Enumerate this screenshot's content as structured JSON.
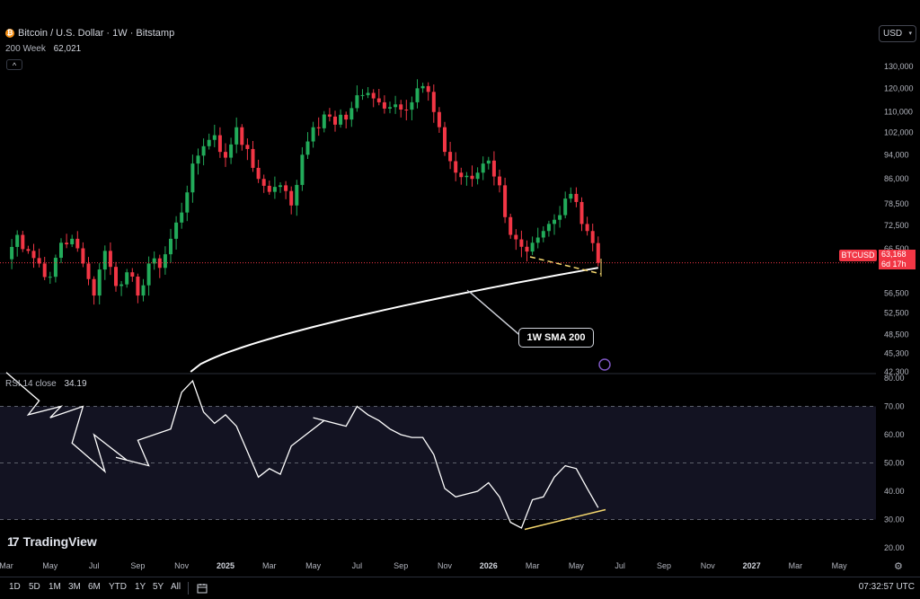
{
  "header": {
    "title": "Bitcoin / U.S. Dollar · 1W · Bitstamp",
    "logo_letter": "₿",
    "sma_label": "200 Week",
    "sma_value": "62,021",
    "collapse_glyph": "^"
  },
  "currency_button": {
    "label": "USD",
    "caret": "▾"
  },
  "price_axis": {
    "labels": [
      "130,000",
      "120,000",
      "110,000",
      "102,000",
      "94,000",
      "86,000",
      "78,500",
      "72,500",
      "66,500",
      "56,500",
      "52,500",
      "48,500",
      "45,300",
      "42,300"
    ]
  },
  "price_marker": {
    "symbol": "BTCUSD",
    "price": "63,168",
    "countdown": "6d 17h"
  },
  "rsi": {
    "label": "RSI 14 close",
    "value": "34.19",
    "axis_labels": [
      "80.00",
      "70.00",
      "60.00",
      "50.00",
      "40.00",
      "30.00",
      "20.00"
    ]
  },
  "annotation": {
    "label": "1W SMA 200"
  },
  "brand": {
    "name": "TradingView",
    "mark": "17"
  },
  "time_axis": [
    {
      "label": "Mar",
      "bold": false
    },
    {
      "label": "May",
      "bold": false
    },
    {
      "label": "Jul",
      "bold": false
    },
    {
      "label": "Sep",
      "bold": false
    },
    {
      "label": "Nov",
      "bold": false
    },
    {
      "label": "2025",
      "bold": true
    },
    {
      "label": "Mar",
      "bold": false
    },
    {
      "label": "May",
      "bold": false
    },
    {
      "label": "Jul",
      "bold": false
    },
    {
      "label": "Sep",
      "bold": false
    },
    {
      "label": "Nov",
      "bold": false
    },
    {
      "label": "2026",
      "bold": true
    },
    {
      "label": "Mar",
      "bold": false
    },
    {
      "label": "May",
      "bold": false
    },
    {
      "label": "Jul",
      "bold": false
    },
    {
      "label": "Sep",
      "bold": false
    },
    {
      "label": "Nov",
      "bold": false
    },
    {
      "label": "2027",
      "bold": true
    },
    {
      "label": "Mar",
      "bold": false
    },
    {
      "label": "May",
      "bold": false
    }
  ],
  "toolbar": {
    "ranges": [
      "1D",
      "5D",
      "1M",
      "3M",
      "6M",
      "YTD",
      "1Y",
      "5Y",
      "All"
    ],
    "time": "07:32:57 UTC",
    "calendar_icon": "calendar-icon",
    "gear_icon": "gear-icon"
  },
  "colors": {
    "up": "#26a69a",
    "up_bright": "#22ab5a",
    "down": "#f23645",
    "sma": "#ffffff",
    "rsi_line": "#ffffff",
    "trendline": "#f5d76e",
    "rsi_band": "#131322",
    "background": "#000000"
  },
  "chart_data": [
    {
      "type": "candlestick",
      "title": "Bitcoin / U.S. Dollar · 1W · Bitstamp",
      "x_start": "2024-03",
      "x_end": "2026-06",
      "ylim": [
        42300,
        134000
      ],
      "log_scale": true,
      "grid": false,
      "price_path": [
        [
          "2024-03",
          64000
        ],
        [
          "2024-03",
          70000
        ],
        [
          "2024-04",
          66000
        ],
        [
          "2024-04",
          63000
        ],
        [
          "2024-05",
          60000
        ],
        [
          "2024-05",
          68000
        ],
        [
          "2024-06",
          69000
        ],
        [
          "2024-06",
          63000
        ],
        [
          "2024-07",
          56000
        ],
        [
          "2024-07",
          66000
        ],
        [
          "2024-08",
          58000
        ],
        [
          "2024-08",
          61000
        ],
        [
          "2024-09",
          56000
        ],
        [
          "2024-09",
          63000
        ],
        [
          "2024-10",
          62000
        ],
        [
          "2024-10",
          69000
        ],
        [
          "2024-11",
          76000
        ],
        [
          "2024-11",
          91000
        ],
        [
          "2024-12",
          97000
        ],
        [
          "2024-12",
          101000
        ],
        [
          "2025-01",
          93000
        ],
        [
          "2025-01",
          104000
        ],
        [
          "2025-02",
          96000
        ],
        [
          "2025-02",
          86000
        ],
        [
          "2025-03",
          82000
        ],
        [
          "2025-03",
          84000
        ],
        [
          "2025-04",
          78000
        ],
        [
          "2025-04",
          94000
        ],
        [
          "2025-05",
          104000
        ],
        [
          "2025-05",
          109000
        ],
        [
          "2025-06",
          105000
        ],
        [
          "2025-06",
          107000
        ],
        [
          "2025-07",
          117000
        ],
        [
          "2025-07",
          118000
        ],
        [
          "2025-08",
          114000
        ],
        [
          "2025-08",
          112000
        ],
        [
          "2025-09",
          111000
        ],
        [
          "2025-09",
          114000
        ],
        [
          "2025-10",
          121000
        ],
        [
          "2025-10",
          110000
        ],
        [
          "2025-11",
          95000
        ],
        [
          "2025-11",
          88000
        ],
        [
          "2025-12",
          87000
        ],
        [
          "2025-12",
          88000
        ],
        [
          "2026-01",
          92000
        ],
        [
          "2026-01",
          84000
        ],
        [
          "2026-02",
          70000
        ],
        [
          "2026-02",
          67000
        ],
        [
          "2026-03",
          68000
        ],
        [
          "2026-03",
          71000
        ],
        [
          "2026-04",
          74000
        ],
        [
          "2026-04",
          80000
        ],
        [
          "2026-05",
          79000
        ],
        [
          "2026-05",
          71000
        ],
        [
          "2026-06",
          63168
        ]
      ],
      "series": [
        {
          "name": "200 Week",
          "last_value": 62021,
          "start": [
            "2024-11",
            42300
          ],
          "end": [
            "2026-06",
            62021
          ]
        }
      ],
      "last_price": 63168
    },
    {
      "type": "line",
      "title": "RSI 14 close",
      "ylim": [
        20,
        80
      ],
      "bands": [
        30,
        50,
        70
      ],
      "series": [
        {
          "name": "RSI 14 close",
          "values": [
            [
              "2024-03",
              82
            ],
            [
              "2024-04",
              72
            ],
            [
              "2024-04",
              67
            ],
            [
              "2024-05",
              70
            ],
            [
              "2024-05",
              66
            ],
            [
              "2024-06",
              70
            ],
            [
              "2024-06",
              57
            ],
            [
              "2024-07",
              47
            ],
            [
              "2024-07",
              60
            ],
            [
              "2024-08",
              51
            ],
            [
              "2024-08",
              52
            ],
            [
              "2024-09",
              49
            ],
            [
              "2024-09",
              58
            ],
            [
              "2024-10",
              62
            ],
            [
              "2024-11",
              75
            ],
            [
              "2024-11",
              79
            ],
            [
              "2024-12",
              68
            ],
            [
              "2024-12",
              64
            ],
            [
              "2025-01",
              67
            ],
            [
              "2025-01",
              63
            ],
            [
              "2025-02",
              54
            ],
            [
              "2025-02",
              45
            ],
            [
              "2025-03",
              48
            ],
            [
              "2025-03",
              46
            ],
            [
              "2025-04",
              56
            ],
            [
              "2025-05",
              65
            ],
            [
              "2025-05",
              66
            ],
            [
              "2025-06",
              63
            ],
            [
              "2025-07",
              70
            ],
            [
              "2025-07",
              67
            ],
            [
              "2025-08",
              65
            ],
            [
              "2025-08",
              62
            ],
            [
              "2025-09",
              60
            ],
            [
              "2025-09",
              59
            ],
            [
              "2025-10",
              59
            ],
            [
              "2025-10",
              53
            ],
            [
              "2025-11",
              41
            ],
            [
              "2025-11",
              38
            ],
            [
              "2025-12",
              39
            ],
            [
              "2025-12",
              40
            ],
            [
              "2026-01",
              43
            ],
            [
              "2026-01",
              38
            ],
            [
              "2026-02",
              29
            ],
            [
              "2026-02",
              27
            ],
            [
              "2026-03",
              37
            ],
            [
              "2026-03",
              38
            ],
            [
              "2026-04",
              45
            ],
            [
              "2026-04",
              49
            ],
            [
              "2026-05",
              48
            ],
            [
              "2026-05",
              41
            ],
            [
              "2026-06",
              34.19
            ]
          ]
        }
      ],
      "last_value": 34.19
    }
  ]
}
